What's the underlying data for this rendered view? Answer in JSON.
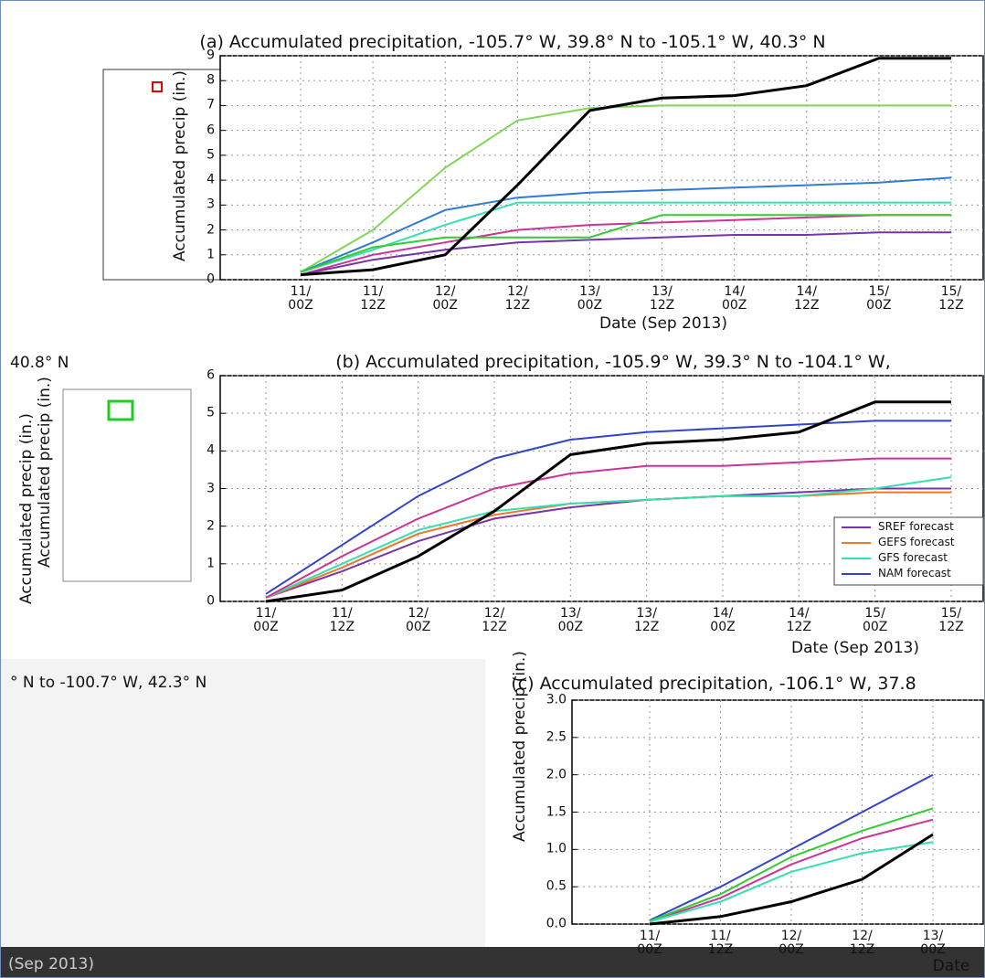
{
  "chart_data": [
    {
      "type": "line",
      "title": "(a) Accumulated precipitation, -105.7° W, 39.8° N to -105.1° W, 40.3° N",
      "y_label": "Accumulated precip (in.)",
      "x_label": "Date (Sep 2013)",
      "categories": [
        "11/\n00Z",
        "11/\n12Z",
        "12/\n00Z",
        "12/\n12Z",
        "13/\n00Z",
        "13/\n12Z",
        "14/\n00Z",
        "14/\n12Z",
        "15/\n00Z",
        "15/\n12Z"
      ],
      "ylim": [
        0,
        9
      ],
      "yticks": [
        0,
        1,
        2,
        3,
        4,
        5,
        6,
        7,
        8,
        9
      ],
      "grid": true,
      "series": [
        {
          "color": "#7fd65a",
          "values": [
            0.3,
            2.0,
            4.5,
            6.4,
            6.9,
            7.0,
            7.0,
            7.0,
            7.0,
            7.0
          ]
        },
        {
          "color": "#2e7bd6",
          "values": [
            0.3,
            1.5,
            2.8,
            3.3,
            3.5,
            3.6,
            3.7,
            3.8,
            3.9,
            4.1
          ]
        },
        {
          "color": "#cc3399",
          "values": [
            0.2,
            1.0,
            1.5,
            2.0,
            2.2,
            2.3,
            2.4,
            2.5,
            2.6,
            2.6
          ]
        },
        {
          "color": "#7733aa",
          "values": [
            0.2,
            0.8,
            1.2,
            1.5,
            1.6,
            1.7,
            1.8,
            1.8,
            1.9,
            1.9
          ]
        },
        {
          "color": "#33e0b0",
          "values": [
            0.3,
            1.2,
            2.2,
            3.1,
            3.1,
            3.1,
            3.1,
            3.1,
            3.1,
            3.1
          ]
        },
        {
          "color": "#33cc33",
          "values": [
            0.3,
            1.3,
            1.7,
            1.7,
            1.7,
            2.6,
            2.6,
            2.6,
            2.6,
            2.6
          ]
        },
        {
          "color": "#000000",
          "values": [
            0.2,
            0.4,
            1.0,
            3.8,
            6.8,
            7.3,
            7.4,
            7.8,
            8.9,
            8.9
          ]
        }
      ]
    },
    {
      "type": "line",
      "title": "(b) Accumulated precipitation, -105.9° W, 39.3° N to -104.1° W,",
      "y_label": "Accumulated precip (in.)",
      "x_label": "Date (Sep 2013)",
      "categories": [
        "11/\n00Z",
        "11/\n12Z",
        "12/\n00Z",
        "12/\n12Z",
        "13/\n00Z",
        "13/\n12Z",
        "14/\n00Z",
        "14/\n12Z",
        "15/\n00Z",
        "15/\n12Z"
      ],
      "ylim": [
        0,
        6
      ],
      "yticks": [
        0,
        1,
        2,
        3,
        4,
        5,
        6
      ],
      "grid": true,
      "legend": "lower right",
      "series": [
        {
          "name": "SREF forecast",
          "color": "#7733aa",
          "values": [
            0.1,
            0.8,
            1.6,
            2.2,
            2.5,
            2.7,
            2.8,
            2.9,
            3.0,
            3.0
          ]
        },
        {
          "name": "GEFS forecast",
          "color": "#ee7722",
          "values": [
            0.1,
            0.9,
            1.8,
            2.3,
            2.6,
            2.7,
            2.8,
            2.8,
            2.9,
            2.9
          ]
        },
        {
          "name": "GFS forecast",
          "color": "#33e0b0",
          "values": [
            0.1,
            1.0,
            1.9,
            2.4,
            2.6,
            2.7,
            2.8,
            2.8,
            3.0,
            3.3
          ]
        },
        {
          "name": "NAM forecast",
          "color": "#3344cc",
          "values": [
            0.2,
            1.5,
            2.8,
            3.8,
            4.3,
            4.5,
            4.6,
            4.7,
            4.8,
            4.8
          ]
        },
        {
          "color": "#cc3399",
          "values": [
            0.1,
            1.2,
            2.2,
            3.0,
            3.4,
            3.6,
            3.6,
            3.7,
            3.8,
            3.8
          ]
        },
        {
          "color": "#000000",
          "values": [
            0.0,
            0.3,
            1.2,
            2.4,
            3.9,
            4.2,
            4.3,
            4.5,
            5.3,
            5.3
          ]
        }
      ]
    },
    {
      "type": "line",
      "title": "(c) Accumulated precipitation, -106.1° W, 37.8",
      "y_label": "Accumulated precip (in.)",
      "x_label": "Date",
      "categories": [
        "11/\n00Z",
        "11/\n12Z",
        "12/\n00Z",
        "12/\n12Z",
        "13/\n00Z"
      ],
      "ylim": [
        0,
        3
      ],
      "yticks": [
        {
          "value": 0,
          "label": "0.0"
        },
        {
          "value": 0.5,
          "label": "0.5"
        },
        {
          "value": 1,
          "label": "1.0"
        },
        {
          "value": 1.5,
          "label": "1.5"
        },
        {
          "value": 2,
          "label": "2.0"
        },
        {
          "value": 2.5,
          "label": "2.5"
        },
        {
          "value": 3,
          "label": "3.0"
        }
      ],
      "grid": true,
      "series": [
        {
          "color": "#3344cc",
          "values": [
            0.05,
            0.5,
            1.0,
            1.5,
            2.0
          ]
        },
        {
          "color": "#cc3399",
          "values": [
            0.03,
            0.35,
            0.8,
            1.15,
            1.4
          ]
        },
        {
          "color": "#33cc33",
          "values": [
            0.04,
            0.4,
            0.9,
            1.25,
            1.55
          ]
        },
        {
          "color": "#33e0b0",
          "values": [
            0.03,
            0.3,
            0.7,
            0.95,
            1.1
          ]
        },
        {
          "color": "#000000",
          "values": [
            0.0,
            0.1,
            0.3,
            0.6,
            1.2
          ]
        }
      ]
    }
  ],
  "fragments": [
    "40.8° N",
    "° N to -100.7° W, 42.3° N",
    "(Sep 2013)",
    "Accumulated precip (in.)"
  ]
}
